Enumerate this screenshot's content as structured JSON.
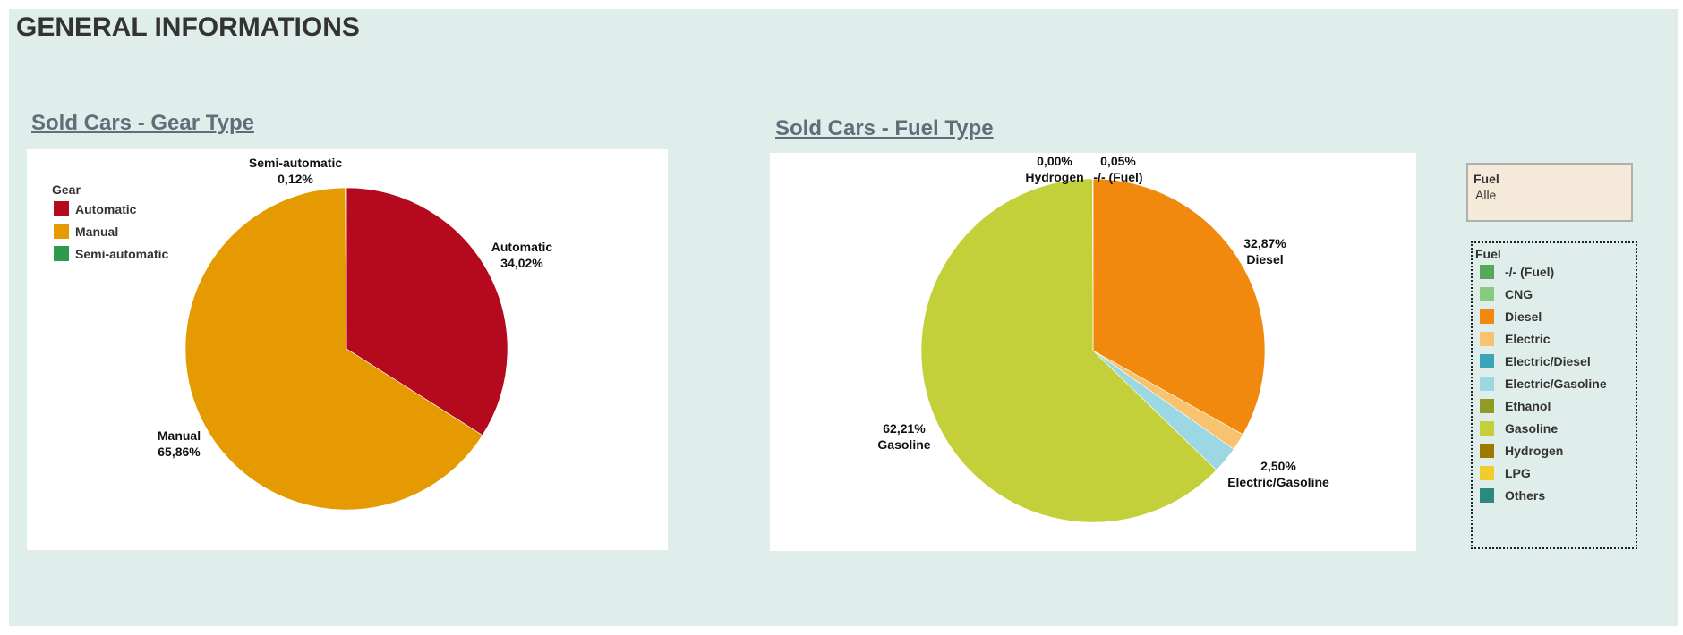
{
  "page": {
    "title": "GENERAL INFORMATIONS"
  },
  "chart_data": [
    {
      "type": "pie",
      "title": "Sold Cars - Gear Type",
      "legend_title": "Gear",
      "legend_position": "top-left",
      "categories": [
        "Automatic",
        "Manual",
        "Semi-automatic"
      ],
      "values": [
        34.02,
        65.86,
        0.12
      ],
      "labels": [
        "34,02%",
        "65,86%",
        "0,12%"
      ],
      "colors": [
        "#b5091e",
        "#e49a00",
        "#2e9a4c"
      ]
    },
    {
      "type": "pie",
      "title": "Sold Cars - Fuel Type",
      "categories": [
        "Diesel",
        "Electric",
        "Electric/Gasoline",
        "Gasoline",
        "Hydrogen",
        "-/- (Fuel)"
      ],
      "values": [
        32.87,
        1.6,
        2.5,
        62.21,
        0.0,
        0.05
      ],
      "colors": [
        "#f0890e",
        "#f8c26e",
        "#9cd7e4",
        "#c4d03a",
        "#9c7a00",
        "#56a95b"
      ],
      "data_labels": [
        {
          "category": "Diesel",
          "value": "32,87%"
        },
        {
          "category": "Electric/Gasoline",
          "value": "2,50%"
        },
        {
          "category": "Gasoline",
          "value": "62,21%"
        },
        {
          "category": "Hydrogen",
          "value": "0,00%"
        },
        {
          "category": "-/- (Fuel)",
          "value": "0,05%"
        }
      ]
    }
  ],
  "filter": {
    "title": "Fuel",
    "value": "Alle"
  },
  "fuel_legend": {
    "title": "Fuel",
    "items": [
      {
        "label": "-/- (Fuel)",
        "color": "#56a95b"
      },
      {
        "label": "CNG",
        "color": "#86cc7f"
      },
      {
        "label": "Diesel",
        "color": "#f0890e"
      },
      {
        "label": "Electric",
        "color": "#f8c26e"
      },
      {
        "label": "Electric/Diesel",
        "color": "#3ba5b8"
      },
      {
        "label": "Electric/Gasoline",
        "color": "#9cd7e4"
      },
      {
        "label": "Ethanol",
        "color": "#8e9c26"
      },
      {
        "label": "Gasoline",
        "color": "#c4d03a"
      },
      {
        "label": "Hydrogen",
        "color": "#9c7a00"
      },
      {
        "label": "LPG",
        "color": "#f2cb2c"
      },
      {
        "label": "Others",
        "color": "#2a8a7d"
      }
    ]
  }
}
